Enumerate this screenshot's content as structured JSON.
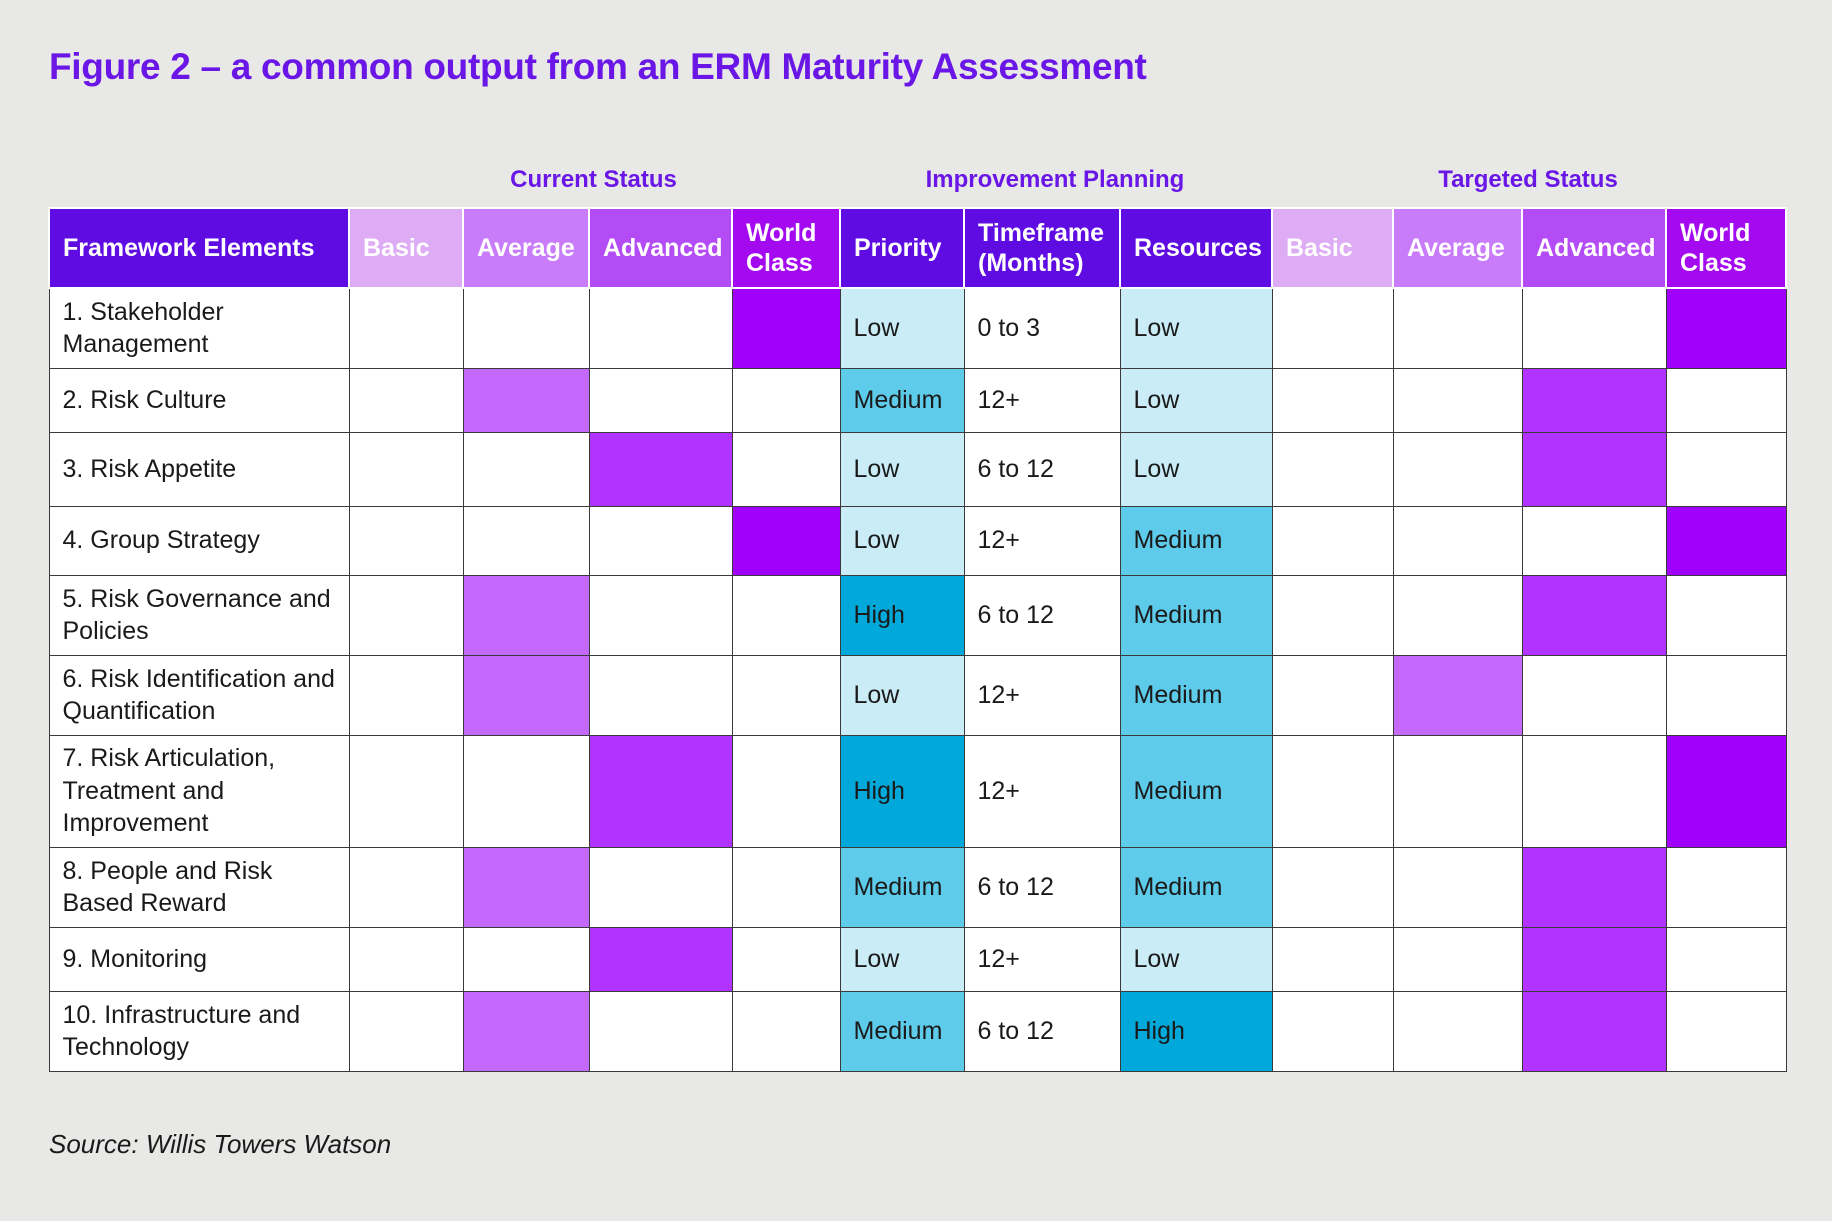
{
  "title": "Figure 2 – a common output from an ERM Maturity Assessment",
  "source": "Source: Willis Towers Watson",
  "chart_data": {
    "type": "table",
    "groups": [
      "Current Status",
      "Improvement Planning",
      "Targeted Status"
    ],
    "columns": [
      "Framework Elements",
      "Basic",
      "Average",
      "Advanced",
      "World Class",
      "Priority",
      "Timeframe (Months)",
      "Resources",
      "Basic",
      "Average",
      "Advanced",
      "World Class"
    ],
    "levels": [
      "Basic",
      "Average",
      "Advanced",
      "World Class"
    ],
    "rows": [
      {
        "element": "1. Stakeholder Management",
        "current": "World Class",
        "priority": "Low",
        "timeframe": "0 to 3",
        "resources": "Low",
        "target": "World Class"
      },
      {
        "element": "2. Risk Culture",
        "current": "Average",
        "priority": "Medium",
        "timeframe": "12+",
        "resources": "Low",
        "target": "Advanced"
      },
      {
        "element": "3. Risk Appetite",
        "current": "Advanced",
        "priority": "Low",
        "timeframe": "6 to 12",
        "resources": "Low",
        "target": "Advanced"
      },
      {
        "element": "4. Group Strategy",
        "current": "World Class",
        "priority": "Low",
        "timeframe": "12+",
        "resources": "Medium",
        "target": "World Class"
      },
      {
        "element": "5. Risk Governance and Policies",
        "current": "Average",
        "priority": "High",
        "timeframe": "6 to 12",
        "resources": "Medium",
        "target": "Advanced"
      },
      {
        "element": "6. Risk Identification and Quantification",
        "current": "Average",
        "priority": "Low",
        "timeframe": "12+",
        "resources": "Medium",
        "target": "Average"
      },
      {
        "element": "7. Risk Articulation, Treatment and Improvement",
        "current": "Advanced",
        "priority": "High",
        "timeframe": "12+",
        "resources": "Medium",
        "target": "World Class"
      },
      {
        "element": "8. People and Risk Based Reward",
        "current": "Average",
        "priority": "Medium",
        "timeframe": "6 to 12",
        "resources": "Medium",
        "target": "Advanced"
      },
      {
        "element": "9. Monitoring",
        "current": "Advanced",
        "priority": "Low",
        "timeframe": "12+",
        "resources": "Low",
        "target": "Advanced"
      },
      {
        "element": "10. Infrastructure and Technology",
        "current": "Average",
        "priority": "Medium",
        "timeframe": "6 to 12",
        "resources": "High",
        "target": "Advanced"
      }
    ],
    "colors": {
      "header_dark": "#5f0ce3",
      "basic_header": "#deacf5",
      "average": "#c568fc",
      "advanced": "#b233ff",
      "world_class": "#a100fa",
      "low": "#c9ecf6",
      "medium": "#5ecbeb",
      "high": "#00a9d9",
      "title": "#6a16e6"
    }
  }
}
